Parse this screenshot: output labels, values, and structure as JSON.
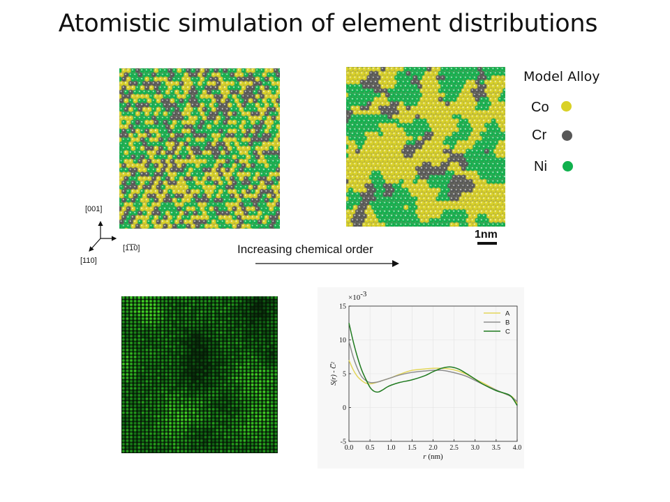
{
  "title": "Atomistic simulation of element distributions",
  "legend": {
    "title": "Model Alloy",
    "items": [
      {
        "label": "Co",
        "color": "#d9d126",
        "icon": "yellow-dot-icon"
      },
      {
        "label": "Cr",
        "color": "#575757",
        "icon": "gray-dot-icon"
      },
      {
        "label": "Ni",
        "color": "#10b14d",
        "icon": "green-dot-icon"
      }
    ]
  },
  "axes_triad": {
    "up": "[001]",
    "right": "[1̅1̅0]",
    "diag": "[110]"
  },
  "order_arrow_label": "Increasing chemical order",
  "scale_bar_label": "1nm",
  "chart_data": {
    "type": "line",
    "title": "",
    "multiplier_label": "×10",
    "multiplier_exp": "-3",
    "xlabel_var": "r",
    "xlabel_unit": " (nm)",
    "ylabel": "S(r) - C̅²",
    "xlim": [
      0.0,
      4.0
    ],
    "ylim": [
      -5,
      15
    ],
    "xticks": [
      0.0,
      0.5,
      1.0,
      1.5,
      2.0,
      2.5,
      3.0,
      3.5,
      4.0
    ],
    "xtick_labels": [
      "0.0",
      "0.5",
      "1.0",
      "1.5",
      "2.0",
      "2.5",
      "3.0",
      "3.5",
      "4.0"
    ],
    "yticks": [
      -5,
      0,
      5,
      10,
      15
    ],
    "ytick_labels": [
      "-5",
      "0",
      "5",
      "10",
      "15"
    ],
    "legend_position": "top-right",
    "series": [
      {
        "name": "A",
        "color": "#e3d65a",
        "x": [
          0.0,
          0.1,
          0.2,
          0.3,
          0.4,
          0.5,
          0.6,
          0.8,
          1.0,
          1.2,
          1.5,
          1.8,
          2.0,
          2.2,
          2.4,
          2.6,
          2.8,
          3.0,
          3.2,
          3.5,
          3.8,
          3.9,
          4.0
        ],
        "y": [
          7.0,
          5.6,
          4.6,
          4.0,
          3.6,
          3.5,
          3.6,
          4.0,
          4.4,
          4.9,
          5.5,
          5.7,
          5.8,
          5.8,
          5.7,
          5.4,
          4.9,
          4.2,
          3.6,
          2.6,
          1.8,
          1.5,
          0.6
        ]
      },
      {
        "name": "B",
        "color": "#8d8d8d",
        "x": [
          0.0,
          0.1,
          0.2,
          0.3,
          0.4,
          0.5,
          0.6,
          0.7,
          0.8,
          1.0,
          1.2,
          1.5,
          1.8,
          2.0,
          2.2,
          2.4,
          2.6,
          2.8,
          3.0,
          3.2,
          3.5,
          3.8,
          3.9,
          4.0
        ],
        "y": [
          9.8,
          7.5,
          5.8,
          4.6,
          4.0,
          3.7,
          3.7,
          3.8,
          4.0,
          4.4,
          4.8,
          5.2,
          5.4,
          5.5,
          5.5,
          5.3,
          5.0,
          4.6,
          4.0,
          3.4,
          2.6,
          1.8,
          1.4,
          0.9
        ]
      },
      {
        "name": "C",
        "color": "#1f7a1f",
        "x": [
          0.0,
          0.1,
          0.2,
          0.3,
          0.4,
          0.5,
          0.6,
          0.7,
          0.8,
          0.9,
          1.0,
          1.2,
          1.5,
          1.8,
          2.0,
          2.2,
          2.4,
          2.6,
          2.8,
          3.0,
          3.2,
          3.5,
          3.8,
          3.9,
          4.0
        ],
        "y": [
          12.5,
          9.8,
          7.5,
          5.6,
          4.2,
          3.0,
          2.4,
          2.3,
          2.6,
          3.0,
          3.3,
          3.7,
          4.1,
          4.7,
          5.3,
          5.8,
          6.0,
          5.7,
          5.0,
          4.2,
          3.4,
          2.5,
          1.9,
          1.3,
          0.3
        ]
      }
    ]
  }
}
